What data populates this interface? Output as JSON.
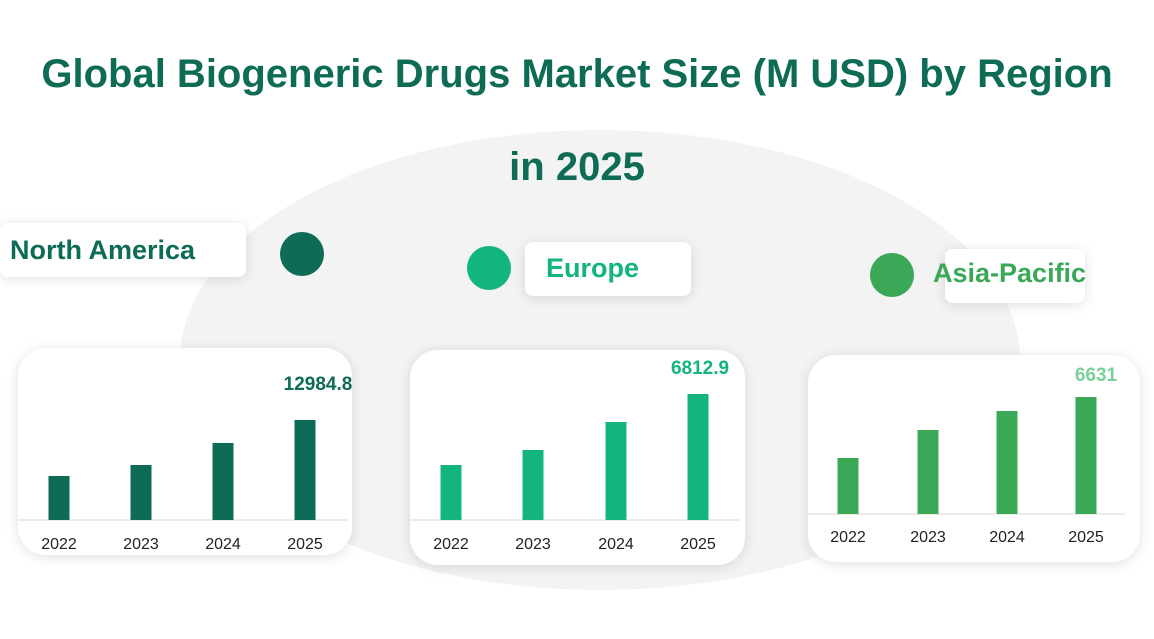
{
  "title": "Global Biogeneric Drugs Market Size (M USD) by Region in 2025",
  "chart_data": [
    {
      "type": "bar",
      "title": "North America",
      "color": "#0e6b55",
      "label_color": "#0e6b55",
      "categories": [
        "2022",
        "2023",
        "2024",
        "2025"
      ],
      "values": [
        5713,
        7142,
        9998,
        12984.8
      ]
    },
    {
      "type": "bar",
      "title": "Europe",
      "color": "#13b57f",
      "label_color": "#13b57f",
      "categories": [
        "2022",
        "2023",
        "2024",
        "2025"
      ],
      "values": [
        2974,
        3785,
        5299,
        6812.9
      ]
    },
    {
      "type": "bar",
      "title": "Asia-Pacific",
      "color": "#3aa857",
      "label_color": "#7ad09a",
      "categories": [
        "2022",
        "2023",
        "2024",
        "2025"
      ],
      "values": [
        3174,
        4761,
        5838,
        6631.0
      ]
    }
  ]
}
